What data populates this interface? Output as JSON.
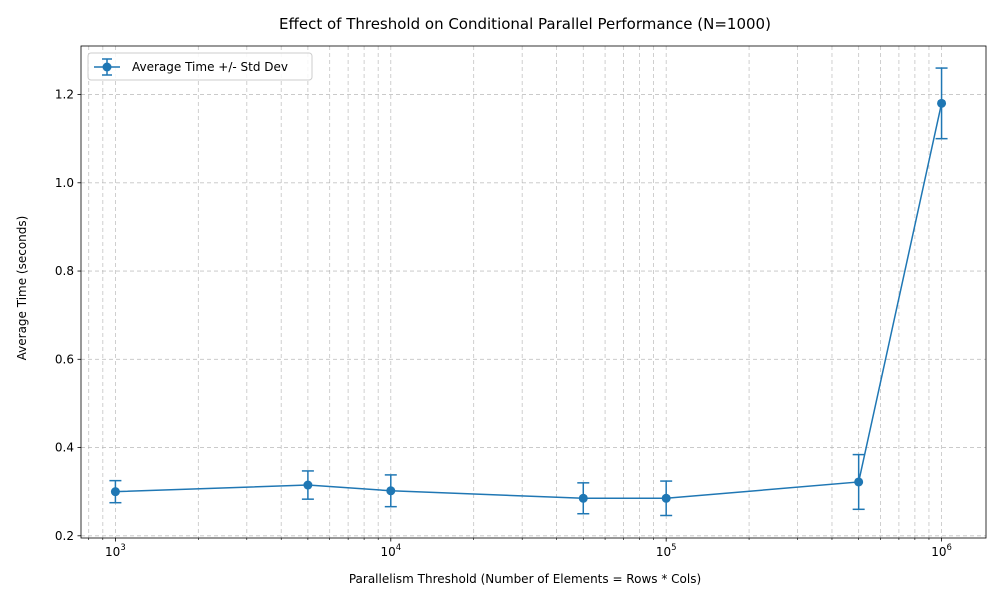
{
  "chart_data": {
    "type": "line",
    "title": "Effect of Threshold on Conditional Parallel Performance (N=1000)",
    "xlabel": "Parallelism Threshold (Number of Elements = Rows * Cols)",
    "ylabel": "Average Time (seconds)",
    "x_scale": "log",
    "xlim": [
      750,
      1450000
    ],
    "ylim": [
      0.195,
      1.31
    ],
    "x_ticks": [
      1000,
      10000,
      100000,
      1000000
    ],
    "x_tick_labels": [
      {
        "base": "10",
        "exp": "3"
      },
      {
        "base": "10",
        "exp": "4"
      },
      {
        "base": "10",
        "exp": "5"
      },
      {
        "base": "10",
        "exp": "6"
      }
    ],
    "y_ticks": [
      0.2,
      0.4,
      0.6,
      0.8,
      1.0,
      1.2
    ],
    "y_tick_labels": [
      "0.2",
      "0.4",
      "0.6",
      "0.8",
      "1.0",
      "1.2"
    ],
    "grid": true,
    "legend_position": "top-left",
    "series": [
      {
        "name": "Average Time +/- Std Dev",
        "color": "#1f77b4",
        "x": [
          1000,
          5000,
          10000,
          50000,
          100000,
          500000,
          1000000
        ],
        "y": [
          0.3,
          0.315,
          0.302,
          0.285,
          0.285,
          0.322,
          1.18
        ],
        "err": [
          0.025,
          0.032,
          0.036,
          0.035,
          0.039,
          0.062,
          0.08
        ]
      }
    ]
  }
}
